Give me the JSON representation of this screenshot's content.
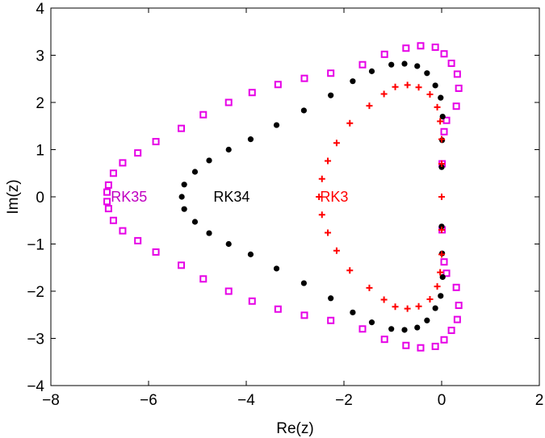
{
  "chart_data": {
    "type": "scatter",
    "title": "",
    "xlabel": "Re(z)",
    "ylabel": "Im(z)",
    "xlim": [
      -8,
      2
    ],
    "ylim": [
      -4,
      4
    ],
    "x_ticks": [
      -8,
      -6,
      -4,
      -2,
      0,
      2
    ],
    "y_ticks": [
      -4,
      -3,
      -2,
      -1,
      0,
      1,
      2,
      3,
      4
    ],
    "x_tick_labels": [
      "−8",
      "−6",
      "−4",
      "−2",
      "0",
      "2"
    ],
    "y_tick_labels": [
      "−4",
      "−3",
      "−2",
      "−1",
      "0",
      "1",
      "2",
      "3",
      "4"
    ],
    "grid": false,
    "legend": "none",
    "series": [
      {
        "name": "RK35",
        "color": "#e600e6",
        "marker": "square",
        "points": [
          [
            -6.85,
            0.1
          ],
          [
            -6.82,
            0.25
          ],
          [
            -6.72,
            0.5
          ],
          [
            -6.53,
            0.72
          ],
          [
            -6.22,
            0.93
          ],
          [
            -5.85,
            1.17
          ],
          [
            -5.33,
            1.45
          ],
          [
            -4.88,
            1.74
          ],
          [
            -4.36,
            2.0
          ],
          [
            -3.88,
            2.21
          ],
          [
            -3.35,
            2.38
          ],
          [
            -2.81,
            2.51
          ],
          [
            -2.27,
            2.62
          ],
          [
            -1.62,
            2.8
          ],
          [
            -1.17,
            3.02
          ],
          [
            -0.73,
            3.15
          ],
          [
            -0.43,
            3.2
          ],
          [
            -0.13,
            3.17
          ],
          [
            0.05,
            3.03
          ],
          [
            0.2,
            2.83
          ],
          [
            0.32,
            2.6
          ],
          [
            0.35,
            2.3
          ],
          [
            0.3,
            1.92
          ],
          [
            0.1,
            1.62
          ],
          [
            0.05,
            1.38
          ],
          [
            0.01,
            0.7
          ],
          [
            -6.85,
            -0.1
          ],
          [
            -6.82,
            -0.25
          ],
          [
            -6.72,
            -0.5
          ],
          [
            -6.53,
            -0.72
          ],
          [
            -6.22,
            -0.93
          ],
          [
            -5.85,
            -1.17
          ],
          [
            -5.33,
            -1.45
          ],
          [
            -4.88,
            -1.74
          ],
          [
            -4.36,
            -2.0
          ],
          [
            -3.88,
            -2.21
          ],
          [
            -3.35,
            -2.38
          ],
          [
            -2.81,
            -2.51
          ],
          [
            -2.27,
            -2.62
          ],
          [
            -1.62,
            -2.8
          ],
          [
            -1.17,
            -3.02
          ],
          [
            -0.73,
            -3.15
          ],
          [
            -0.43,
            -3.2
          ],
          [
            -0.13,
            -3.17
          ],
          [
            0.05,
            -3.03
          ],
          [
            0.2,
            -2.83
          ],
          [
            0.32,
            -2.6
          ],
          [
            0.35,
            -2.3
          ],
          [
            0.3,
            -1.92
          ],
          [
            0.1,
            -1.62
          ],
          [
            0.05,
            -1.38
          ],
          [
            0.01,
            -0.7
          ]
        ]
      },
      {
        "name": "RK34",
        "color": "#000000",
        "marker": "circle",
        "points": [
          [
            -5.32,
            0.0
          ],
          [
            -5.27,
            0.26
          ],
          [
            -5.05,
            0.53
          ],
          [
            -4.76,
            0.77
          ],
          [
            -4.36,
            1.0
          ],
          [
            -3.91,
            1.22
          ],
          [
            -3.38,
            1.52
          ],
          [
            -2.82,
            1.83
          ],
          [
            -2.27,
            2.15
          ],
          [
            -1.82,
            2.45
          ],
          [
            -1.43,
            2.66
          ],
          [
            -1.03,
            2.8
          ],
          [
            -0.76,
            2.82
          ],
          [
            -0.5,
            2.77
          ],
          [
            -0.3,
            2.62
          ],
          [
            -0.13,
            2.36
          ],
          [
            -0.02,
            2.1
          ],
          [
            0.02,
            1.7
          ],
          [
            0.01,
            1.2
          ],
          [
            0.0,
            0.63
          ],
          [
            -5.27,
            -0.26
          ],
          [
            -5.05,
            -0.53
          ],
          [
            -4.76,
            -0.77
          ],
          [
            -4.36,
            -1.0
          ],
          [
            -3.91,
            -1.22
          ],
          [
            -3.38,
            -1.52
          ],
          [
            -2.82,
            -1.83
          ],
          [
            -2.27,
            -2.15
          ],
          [
            -1.82,
            -2.45
          ],
          [
            -1.43,
            -2.66
          ],
          [
            -1.03,
            -2.8
          ],
          [
            -0.76,
            -2.82
          ],
          [
            -0.5,
            -2.77
          ],
          [
            -0.3,
            -2.62
          ],
          [
            -0.13,
            -2.36
          ],
          [
            -0.02,
            -2.1
          ],
          [
            0.02,
            -1.7
          ],
          [
            0.01,
            -1.2
          ],
          [
            0.0,
            -0.63
          ]
        ]
      },
      {
        "name": "RK3",
        "color": "#ff0000",
        "marker": "plus",
        "points": [
          [
            -2.51,
            0.0
          ],
          [
            -2.45,
            0.38
          ],
          [
            -2.33,
            0.76
          ],
          [
            -2.15,
            1.14
          ],
          [
            -1.88,
            1.56
          ],
          [
            -1.48,
            1.93
          ],
          [
            -1.18,
            2.18
          ],
          [
            -0.95,
            2.33
          ],
          [
            -0.7,
            2.37
          ],
          [
            -0.47,
            2.32
          ],
          [
            -0.24,
            2.17
          ],
          [
            -0.09,
            1.9
          ],
          [
            -0.03,
            1.6
          ],
          [
            0.0,
            1.22
          ],
          [
            0.0,
            0.7
          ],
          [
            0.0,
            0.0
          ],
          [
            -2.45,
            -0.38
          ],
          [
            -2.33,
            -0.76
          ],
          [
            -2.15,
            -1.14
          ],
          [
            -1.88,
            -1.56
          ],
          [
            -1.48,
            -1.93
          ],
          [
            -1.18,
            -2.18
          ],
          [
            -0.95,
            -2.33
          ],
          [
            -0.7,
            -2.37
          ],
          [
            -0.47,
            -2.32
          ],
          [
            -0.24,
            -2.17
          ],
          [
            -0.09,
            -1.9
          ],
          [
            -0.03,
            -1.6
          ],
          [
            0.0,
            -1.22
          ],
          [
            0.0,
            -0.7
          ]
        ]
      }
    ],
    "annotations": [
      {
        "text": "RK35",
        "x": -6.4,
        "y": 0.0,
        "color": "#c000c0"
      },
      {
        "text": "RK34",
        "x": -4.3,
        "y": 0.0,
        "color": "#000000"
      },
      {
        "text": "RK3",
        "x": -2.2,
        "y": 0.0,
        "color": "#ff0000"
      }
    ]
  }
}
